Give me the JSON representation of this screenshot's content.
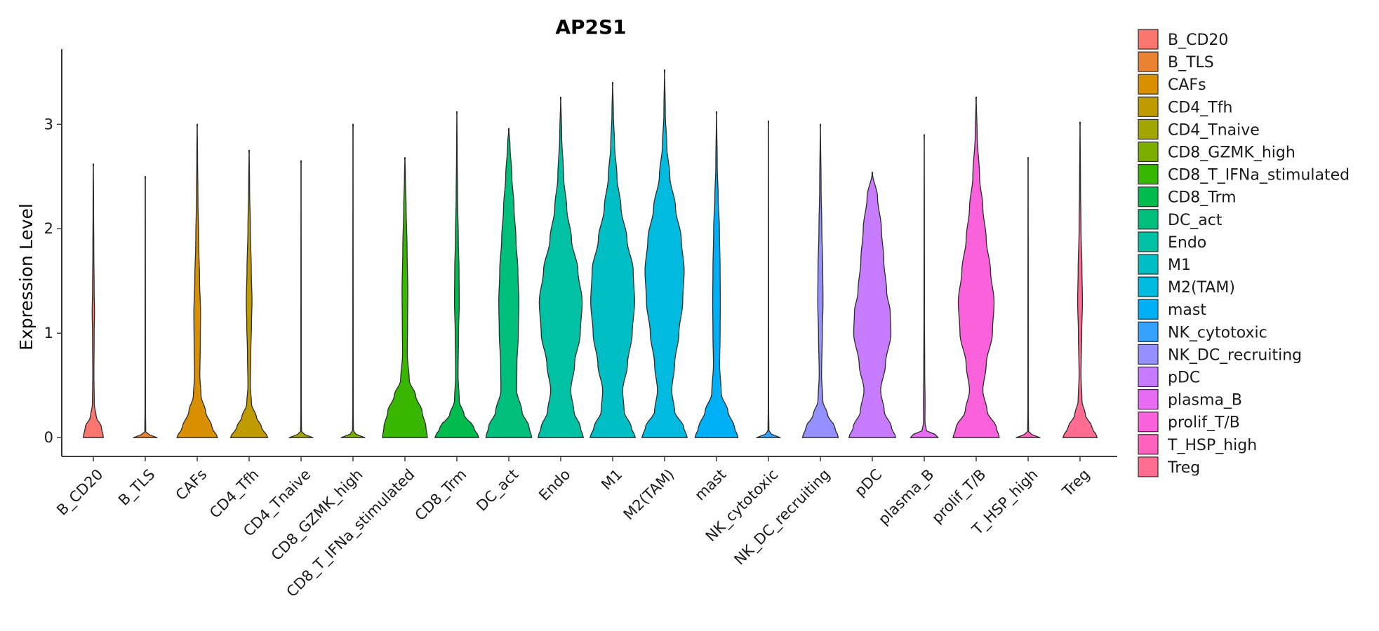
{
  "chart_data": {
    "type": "violin",
    "title": "AP2S1",
    "xlabel": "",
    "ylabel": "Expression Level",
    "ylim": [
      -0.18,
      3.72
    ],
    "yticks": [
      0,
      1,
      2,
      3
    ],
    "legend_position": "right",
    "categories": [
      "B_CD20",
      "B_TLS",
      "CAFs",
      "CD4_Tfh",
      "CD4_Tnaive",
      "CD8_GZMK_high",
      "CD8_T_IFNa_stimulated",
      "CD8_Trm",
      "DC_act",
      "Endo",
      "M1",
      "M2(TAM)",
      "mast",
      "NK_cytotoxic",
      "NK_DC_recruiting",
      "pDC",
      "plasma_B",
      "prolif_T/B",
      "T_HSP_high",
      "Treg"
    ],
    "colors": [
      "#F8766D",
      "#EA8331",
      "#D89000",
      "#C09B00",
      "#A3A500",
      "#7CAE00",
      "#39B600",
      "#00BB4E",
      "#00BF7D",
      "#00C1A3",
      "#00BFC4",
      "#00BAE0",
      "#00B0F6",
      "#35A2FF",
      "#9590FF",
      "#C77CFF",
      "#E76BF3",
      "#FA62DB",
      "#FF62BC",
      "#FF6C91"
    ],
    "series": [
      {
        "name": "B_CD20",
        "max": 2.62,
        "profile": [
          [
            0,
            0.42
          ],
          [
            0.1,
            0.34
          ],
          [
            0.2,
            0.12
          ],
          [
            0.32,
            0.04
          ],
          [
            0.6,
            0.025
          ],
          [
            1.0,
            0.035
          ],
          [
            1.2,
            0.05
          ],
          [
            1.4,
            0.035
          ],
          [
            1.8,
            0.02
          ],
          [
            2.2,
            0.012
          ],
          [
            2.62,
            0.004
          ]
        ]
      },
      {
        "name": "B_TLS",
        "max": 2.5,
        "profile": [
          [
            0,
            0.5
          ],
          [
            0.02,
            0.2
          ],
          [
            0.05,
            0.02
          ],
          [
            0.3,
            0.01
          ],
          [
            1.0,
            0.009
          ],
          [
            2.5,
            0.005
          ]
        ]
      },
      {
        "name": "CAFs",
        "max": 3.0,
        "profile": [
          [
            0,
            0.85
          ],
          [
            0.1,
            0.62
          ],
          [
            0.25,
            0.35
          ],
          [
            0.4,
            0.16
          ],
          [
            0.6,
            0.11
          ],
          [
            0.9,
            0.13
          ],
          [
            1.2,
            0.14
          ],
          [
            1.5,
            0.1
          ],
          [
            1.9,
            0.06
          ],
          [
            2.3,
            0.03
          ],
          [
            2.7,
            0.015
          ],
          [
            3.0,
            0.004
          ]
        ]
      },
      {
        "name": "CD4_Tfh",
        "max": 2.75,
        "profile": [
          [
            0,
            0.78
          ],
          [
            0.1,
            0.52
          ],
          [
            0.2,
            0.3
          ],
          [
            0.32,
            0.1
          ],
          [
            0.5,
            0.05
          ],
          [
            0.8,
            0.07
          ],
          [
            1.1,
            0.1
          ],
          [
            1.3,
            0.12
          ],
          [
            1.6,
            0.09
          ],
          [
            2.0,
            0.05
          ],
          [
            2.4,
            0.02
          ],
          [
            2.75,
            0.004
          ]
        ]
      },
      {
        "name": "CD4_Tnaive",
        "max": 2.65,
        "profile": [
          [
            0,
            0.5
          ],
          [
            0.02,
            0.2
          ],
          [
            0.05,
            0.02
          ],
          [
            0.3,
            0.01
          ],
          [
            1.0,
            0.009
          ],
          [
            2.65,
            0.005
          ]
        ]
      },
      {
        "name": "CD8_GZMK_high",
        "max": 3.0,
        "profile": [
          [
            0,
            0.5
          ],
          [
            0.02,
            0.2
          ],
          [
            0.05,
            0.02
          ],
          [
            0.3,
            0.01
          ],
          [
            1.0,
            0.009
          ],
          [
            3.0,
            0.005
          ]
        ]
      },
      {
        "name": "CD8_T_IFNa_stimulated",
        "max": 2.68,
        "profile": [
          [
            0,
            0.94
          ],
          [
            0.1,
            0.88
          ],
          [
            0.25,
            0.72
          ],
          [
            0.4,
            0.45
          ],
          [
            0.55,
            0.18
          ],
          [
            0.8,
            0.1
          ],
          [
            1.1,
            0.11
          ],
          [
            1.4,
            0.12
          ],
          [
            1.8,
            0.09
          ],
          [
            2.2,
            0.05
          ],
          [
            2.5,
            0.02
          ],
          [
            2.68,
            0.004
          ]
        ]
      },
      {
        "name": "CD8_Trm",
        "max": 3.12,
        "profile": [
          [
            0,
            0.92
          ],
          [
            0.1,
            0.7
          ],
          [
            0.22,
            0.3
          ],
          [
            0.35,
            0.1
          ],
          [
            0.6,
            0.05
          ],
          [
            1.0,
            0.07
          ],
          [
            1.3,
            0.1
          ],
          [
            1.6,
            0.09
          ],
          [
            1.9,
            0.06
          ],
          [
            2.3,
            0.03
          ],
          [
            2.7,
            0.015
          ],
          [
            3.12,
            0.004
          ]
        ]
      },
      {
        "name": "DC_act",
        "max": 2.96,
        "profile": [
          [
            0,
            0.96
          ],
          [
            0.1,
            0.85
          ],
          [
            0.25,
            0.55
          ],
          [
            0.45,
            0.33
          ],
          [
            0.7,
            0.34
          ],
          [
            1.0,
            0.4
          ],
          [
            1.3,
            0.42
          ],
          [
            1.6,
            0.38
          ],
          [
            1.9,
            0.3
          ],
          [
            2.2,
            0.22
          ],
          [
            2.5,
            0.13
          ],
          [
            2.8,
            0.05
          ],
          [
            2.96,
            0.004
          ]
        ]
      },
      {
        "name": "Endo",
        "max": 3.26,
        "profile": [
          [
            0,
            0.95
          ],
          [
            0.1,
            0.82
          ],
          [
            0.25,
            0.55
          ],
          [
            0.45,
            0.42
          ],
          [
            0.7,
            0.58
          ],
          [
            1.0,
            0.82
          ],
          [
            1.3,
            0.9
          ],
          [
            1.6,
            0.72
          ],
          [
            1.9,
            0.45
          ],
          [
            2.2,
            0.25
          ],
          [
            2.5,
            0.12
          ],
          [
            2.9,
            0.04
          ],
          [
            3.26,
            0.004
          ]
        ]
      },
      {
        "name": "M1",
        "max": 3.4,
        "profile": [
          [
            0,
            0.95
          ],
          [
            0.1,
            0.78
          ],
          [
            0.25,
            0.48
          ],
          [
            0.45,
            0.42
          ],
          [
            0.7,
            0.62
          ],
          [
            1.0,
            0.82
          ],
          [
            1.3,
            0.92
          ],
          [
            1.6,
            0.86
          ],
          [
            1.9,
            0.6
          ],
          [
            2.2,
            0.35
          ],
          [
            2.5,
            0.18
          ],
          [
            2.8,
            0.08
          ],
          [
            3.1,
            0.03
          ],
          [
            3.4,
            0.004
          ]
        ]
      },
      {
        "name": "M2(TAM)",
        "max": 3.52,
        "profile": [
          [
            0,
            0.95
          ],
          [
            0.1,
            0.8
          ],
          [
            0.25,
            0.42
          ],
          [
            0.45,
            0.3
          ],
          [
            0.7,
            0.42
          ],
          [
            1.0,
            0.6
          ],
          [
            1.3,
            0.76
          ],
          [
            1.6,
            0.82
          ],
          [
            1.9,
            0.7
          ],
          [
            2.2,
            0.46
          ],
          [
            2.5,
            0.22
          ],
          [
            2.8,
            0.09
          ],
          [
            3.1,
            0.03
          ],
          [
            3.52,
            0.004
          ]
        ]
      },
      {
        "name": "mast",
        "max": 3.12,
        "profile": [
          [
            0,
            0.9
          ],
          [
            0.1,
            0.75
          ],
          [
            0.25,
            0.48
          ],
          [
            0.42,
            0.2
          ],
          [
            0.7,
            0.13
          ],
          [
            1.0,
            0.15
          ],
          [
            1.3,
            0.16
          ],
          [
            1.6,
            0.15
          ],
          [
            2.0,
            0.12
          ],
          [
            2.3,
            0.07
          ],
          [
            2.6,
            0.03
          ],
          [
            3.12,
            0.004
          ]
        ]
      },
      {
        "name": "NK_cytotoxic",
        "max": 3.03,
        "profile": [
          [
            0,
            0.5
          ],
          [
            0.02,
            0.2
          ],
          [
            0.05,
            0.02
          ],
          [
            0.3,
            0.01
          ],
          [
            1.0,
            0.009
          ],
          [
            3.03,
            0.005
          ]
        ]
      },
      {
        "name": "NK_DC_recruiting",
        "max": 3.0,
        "profile": [
          [
            0,
            0.75
          ],
          [
            0.1,
            0.6
          ],
          [
            0.22,
            0.3
          ],
          [
            0.35,
            0.1
          ],
          [
            0.6,
            0.05
          ],
          [
            1.0,
            0.08
          ],
          [
            1.3,
            0.11
          ],
          [
            1.6,
            0.1
          ],
          [
            2.0,
            0.06
          ],
          [
            2.4,
            0.03
          ],
          [
            3.0,
            0.004
          ]
        ]
      },
      {
        "name": "pDC",
        "max": 2.54,
        "profile": [
          [
            0,
            0.98
          ],
          [
            0.1,
            0.8
          ],
          [
            0.25,
            0.5
          ],
          [
            0.45,
            0.35
          ],
          [
            0.7,
            0.55
          ],
          [
            1.0,
            0.78
          ],
          [
            1.2,
            0.75
          ],
          [
            1.4,
            0.6
          ],
          [
            1.7,
            0.48
          ],
          [
            2.0,
            0.38
          ],
          [
            2.3,
            0.22
          ],
          [
            2.54,
            0.004
          ]
        ]
      },
      {
        "name": "plasma_B",
        "max": 2.9,
        "profile": [
          [
            0,
            0.58
          ],
          [
            0.03,
            0.45
          ],
          [
            0.07,
            0.08
          ],
          [
            0.15,
            0.03
          ],
          [
            0.35,
            0.035
          ],
          [
            0.6,
            0.02
          ],
          [
            1.2,
            0.012
          ],
          [
            2.0,
            0.008
          ],
          [
            2.9,
            0.004
          ]
        ]
      },
      {
        "name": "prolif_T/B",
        "max": 3.26,
        "profile": [
          [
            0,
            0.97
          ],
          [
            0.1,
            0.84
          ],
          [
            0.25,
            0.46
          ],
          [
            0.45,
            0.28
          ],
          [
            0.7,
            0.42
          ],
          [
            1.0,
            0.68
          ],
          [
            1.3,
            0.75
          ],
          [
            1.6,
            0.6
          ],
          [
            1.9,
            0.42
          ],
          [
            2.2,
            0.28
          ],
          [
            2.5,
            0.14
          ],
          [
            2.9,
            0.04
          ],
          [
            3.26,
            0.004
          ]
        ]
      },
      {
        "name": "T_HSP_high",
        "max": 2.68,
        "profile": [
          [
            0,
            0.5
          ],
          [
            0.02,
            0.2
          ],
          [
            0.05,
            0.02
          ],
          [
            0.3,
            0.01
          ],
          [
            1.0,
            0.009
          ],
          [
            2.68,
            0.005
          ]
        ]
      },
      {
        "name": "Treg",
        "max": 3.02,
        "profile": [
          [
            0,
            0.72
          ],
          [
            0.1,
            0.5
          ],
          [
            0.22,
            0.22
          ],
          [
            0.35,
            0.08
          ],
          [
            0.6,
            0.04
          ],
          [
            1.0,
            0.07
          ],
          [
            1.3,
            0.1
          ],
          [
            1.6,
            0.08
          ],
          [
            2.0,
            0.04
          ],
          [
            2.4,
            0.02
          ],
          [
            3.02,
            0.004
          ]
        ]
      }
    ]
  }
}
